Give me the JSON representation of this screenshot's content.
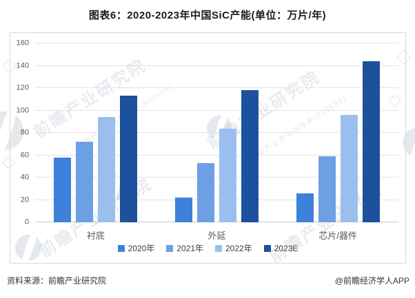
{
  "title": "图表6：2020-2023年中国SiC产能(单位：万片/年)",
  "footer": {
    "source": "资料来源：前瞻产业研究院",
    "credit": "@前瞻经济学人APP"
  },
  "watermark": {
    "brand": "前瞻产业研究院",
    "sub": "中国产业咨询领导者(839599)"
  },
  "chart_data": {
    "type": "bar",
    "title": "图表6：2020-2023年中国SiC产能(单位：万片/年)",
    "unit": "万片/年",
    "categories": [
      "衬底",
      "外延",
      "芯片/器件"
    ],
    "series": [
      {
        "name": "2020年",
        "color": "#3F80DB",
        "values": [
          58,
          22,
          26
        ]
      },
      {
        "name": "2021年",
        "color": "#6D9FE4",
        "values": [
          72,
          53,
          59
        ]
      },
      {
        "name": "2022年",
        "color": "#9ABFEE",
        "values": [
          94,
          84,
          96
        ]
      },
      {
        "name": "2023E",
        "color": "#1C519D",
        "values": [
          113,
          118,
          144
        ]
      }
    ],
    "ylim": [
      0,
      160
    ],
    "yticks": [
      0,
      20,
      40,
      60,
      80,
      100,
      120,
      140,
      160
    ],
    "grid": true,
    "legend_position": "bottom"
  }
}
